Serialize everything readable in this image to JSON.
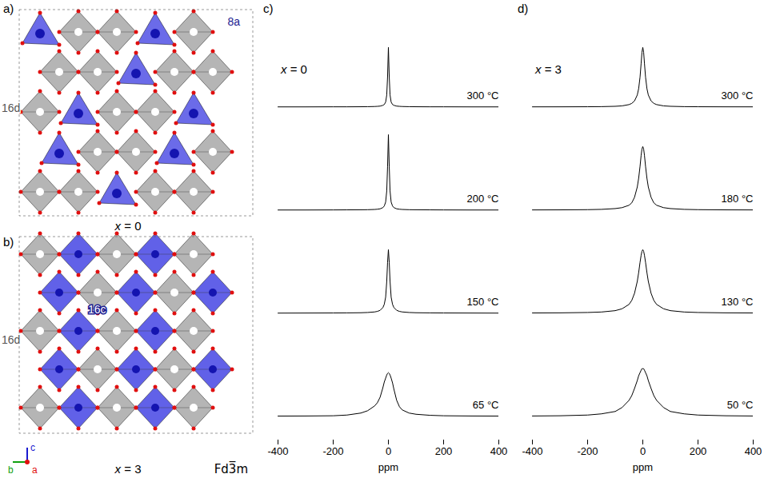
{
  "structures": [
    {
      "letter": "a)",
      "site_labels": [
        "8a",
        "16d"
      ],
      "caption": "x = 0"
    },
    {
      "letter": "b)",
      "site_labels": [
        "16c",
        "16d"
      ],
      "caption": "x = 3",
      "space_group": "Fd3̅m",
      "axis_labels": [
        "c",
        "b",
        "a"
      ]
    }
  ],
  "chart_data": [
    {
      "type": "line",
      "panel": "c)",
      "annotation": "x = 0",
      "xlabel": "ppm",
      "xlim": [
        -400,
        400
      ],
      "xticks": [
        -400,
        -200,
        0,
        200,
        400
      ],
      "ylim": [
        -0.3,
        1
      ],
      "tick_labels": "x",
      "color": "#000000",
      "x": [
        -400,
        -300,
        -200,
        -150,
        -100,
        -75,
        -50,
        -40,
        -30,
        -20,
        -15,
        -10,
        -6,
        -3,
        0,
        3,
        6,
        10,
        15,
        20,
        30,
        40,
        50,
        75,
        100,
        150,
        200,
        300,
        400
      ],
      "series": [
        {
          "name": "300 °C",
          "values": [
            0,
            0,
            0.001,
            0.001,
            0.002,
            0.003,
            0.005,
            0.007,
            0.01,
            0.02,
            0.03,
            0.06,
            0.15,
            0.38,
            0.75,
            0.38,
            0.15,
            0.06,
            0.03,
            0.02,
            0.01,
            0.007,
            0.005,
            0.003,
            0.002,
            0.001,
            0.001,
            0,
            0
          ]
        },
        {
          "name": "200 °C",
          "values": [
            0,
            0,
            0.001,
            0.002,
            0.003,
            0.004,
            0.007,
            0.01,
            0.015,
            0.03,
            0.05,
            0.1,
            0.24,
            0.55,
            0.95,
            0.55,
            0.24,
            0.1,
            0.05,
            0.03,
            0.015,
            0.01,
            0.007,
            0.004,
            0.003,
            0.002,
            0.001,
            0,
            0
          ]
        },
        {
          "name": "150 °C",
          "values": [
            0,
            0.001,
            0.002,
            0.003,
            0.005,
            0.008,
            0.015,
            0.022,
            0.035,
            0.07,
            0.11,
            0.2,
            0.4,
            0.64,
            0.8,
            0.64,
            0.4,
            0.2,
            0.11,
            0.07,
            0.035,
            0.022,
            0.015,
            0.008,
            0.005,
            0.003,
            0.002,
            0.001,
            0
          ]
        },
        {
          "name": "65 °C",
          "values": [
            0.002,
            0.003,
            0.006,
            0.015,
            0.04,
            0.07,
            0.13,
            0.17,
            0.24,
            0.36,
            0.43,
            0.48,
            0.52,
            0.54,
            0.55,
            0.54,
            0.52,
            0.48,
            0.42,
            0.34,
            0.2,
            0.12,
            0.08,
            0.04,
            0.025,
            0.012,
            0.006,
            0.003,
            0.002
          ]
        }
      ]
    },
    {
      "type": "line",
      "panel": "d)",
      "annotation": "x = 3",
      "xlabel": "ppm",
      "xlim": [
        -400,
        400
      ],
      "xticks": [
        -400,
        -200,
        0,
        200,
        400
      ],
      "ylim": [
        -0.3,
        1
      ],
      "tick_labels": "x",
      "color": "#000000",
      "x": [
        -400,
        -300,
        -200,
        -150,
        -100,
        -75,
        -50,
        -40,
        -30,
        -20,
        -15,
        -10,
        -6,
        -3,
        0,
        3,
        6,
        10,
        15,
        20,
        30,
        40,
        50,
        75,
        100,
        150,
        200,
        300,
        400
      ],
      "series": [
        {
          "name": "300 °C",
          "values": [
            0.0005,
            0.0008,
            0.0019,
            0.0033,
            0.0074,
            0.013,
            0.029,
            0.044,
            0.075,
            0.15,
            0.23,
            0.375,
            0.55,
            0.69,
            0.75,
            0.69,
            0.55,
            0.375,
            0.23,
            0.15,
            0.075,
            0.044,
            0.029,
            0.013,
            0.0074,
            0.0033,
            0.0019,
            0.0008,
            0.0005
          ]
        },
        {
          "name": "180 °C",
          "values": [
            0.001,
            0.002,
            0.0045,
            0.008,
            0.018,
            0.03,
            0.06,
            0.09,
            0.16,
            0.29,
            0.4,
            0.55,
            0.69,
            0.77,
            0.8,
            0.77,
            0.69,
            0.55,
            0.4,
            0.29,
            0.16,
            0.09,
            0.06,
            0.03,
            0.018,
            0.008,
            0.0045,
            0.002,
            0.001
          ]
        },
        {
          "name": "130 °C",
          "values": [
            0.002,
            0.0035,
            0.008,
            0.014,
            0.031,
            0.055,
            0.11,
            0.16,
            0.25,
            0.4,
            0.51,
            0.64,
            0.73,
            0.78,
            0.8,
            0.78,
            0.73,
            0.64,
            0.51,
            0.4,
            0.25,
            0.16,
            0.11,
            0.055,
            0.031,
            0.014,
            0.008,
            0.0035,
            0.002
          ]
        },
        {
          "name": "50 °C",
          "values": [
            0.003,
            0.006,
            0.015,
            0.03,
            0.06,
            0.11,
            0.2,
            0.26,
            0.35,
            0.45,
            0.51,
            0.55,
            0.58,
            0.6,
            0.6,
            0.6,
            0.58,
            0.55,
            0.51,
            0.45,
            0.35,
            0.26,
            0.2,
            0.11,
            0.06,
            0.03,
            0.015,
            0.006,
            0.003
          ]
        }
      ]
    }
  ]
}
